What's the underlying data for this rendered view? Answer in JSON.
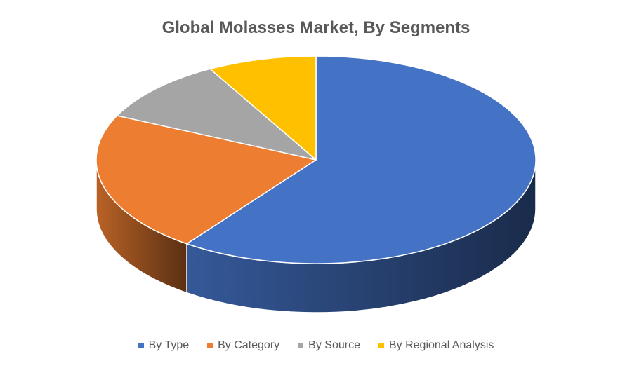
{
  "chart_data": {
    "type": "pie",
    "title": "Global Molasses Market, By Segments",
    "categories": [
      "By Type",
      "By Category",
      "By Source",
      "By Regional Analysis"
    ],
    "values": [
      60,
      22,
      10,
      8
    ],
    "colors": [
      "#4472C4",
      "#ED7D31",
      "#A5A5A5",
      "#FFC000"
    ],
    "legend_position": "bottom",
    "three_d": true
  }
}
